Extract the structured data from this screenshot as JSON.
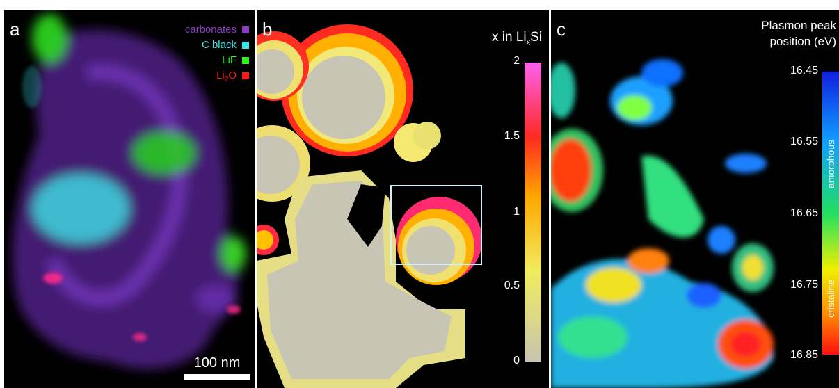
{
  "panel_a": {
    "label": "a",
    "legend": [
      {
        "text": "carbonates",
        "color": "#8e3cc8"
      },
      {
        "text": "C black",
        "color": "#35e8ea"
      },
      {
        "text": "LiF",
        "color": "#33ee22"
      },
      {
        "text": "Li",
        "sub": "2",
        "tail": "O",
        "color": "#ff1a1a"
      }
    ],
    "scale_bar": "100 nm"
  },
  "panel_b": {
    "label": "b",
    "colorbar_title_pre": "x in Li",
    "colorbar_title_sub": "x",
    "colorbar_title_post": "Si",
    "ticks": [
      "2",
      "1.5",
      "1",
      "0.5",
      "0"
    ]
  },
  "panel_c": {
    "label": "c",
    "title_line1": "Plasmon peak",
    "title_line2": "position (eV)",
    "ticks": [
      "16.45",
      "16.55",
      "16.65",
      "16.75",
      "16.85"
    ],
    "side_label_top": "amorphous",
    "side_label_bottom": "cristaline"
  },
  "colors": {
    "background": "#000000",
    "selection_box": "#d0f0ff"
  }
}
